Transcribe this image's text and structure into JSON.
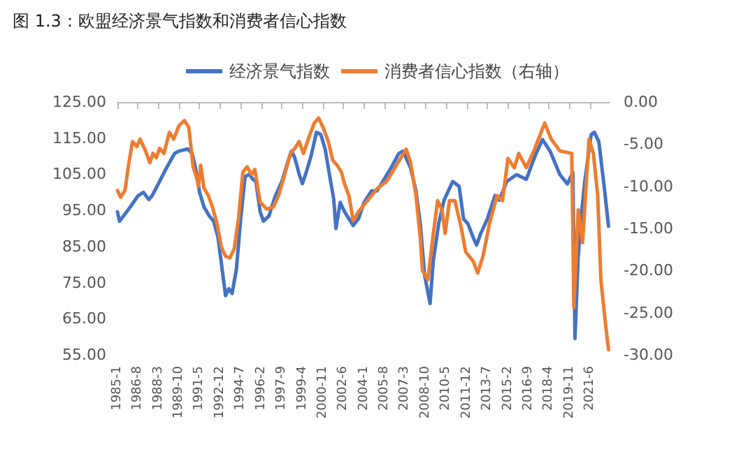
{
  "chart_data": {
    "type": "line",
    "title": "图 1.3：欧盟经济景气指数和消费者信心指数",
    "legend": "top",
    "grid": false,
    "marker": "none",
    "line_style": "solid",
    "xlim": [
      "1985-01",
      "2022-12"
    ],
    "xticks": [
      {
        "value": "1985-01",
        "label": "1985-1"
      },
      {
        "value": "1986-08",
        "label": "1986-8"
      },
      {
        "value": "1988-03",
        "label": "1988-3"
      },
      {
        "value": "1989-10",
        "label": "1989-10"
      },
      {
        "value": "1991-05",
        "label": "1991-5"
      },
      {
        "value": "1992-12",
        "label": "1992-12"
      },
      {
        "value": "1994-07",
        "label": "1994-7"
      },
      {
        "value": "1996-02",
        "label": "1996-2"
      },
      {
        "value": "1997-09",
        "label": "1997-9"
      },
      {
        "value": "1999-04",
        "label": "1999-4"
      },
      {
        "value": "2000-11",
        "label": "2000-11"
      },
      {
        "value": "2002-06",
        "label": "2002-6"
      },
      {
        "value": "2004-01",
        "label": "2004-1"
      },
      {
        "value": "2005-08",
        "label": "2005-8"
      },
      {
        "value": "2007-03",
        "label": "2007-3"
      },
      {
        "value": "2008-10",
        "label": "2008-10"
      },
      {
        "value": "2010-05",
        "label": "2010-5"
      },
      {
        "value": "2011-12",
        "label": "2011-12"
      },
      {
        "value": "2013-07",
        "label": "2013-7"
      },
      {
        "value": "2015-02",
        "label": "2015-2"
      },
      {
        "value": "2016-09",
        "label": "2016-9"
      },
      {
        "value": "2018-04",
        "label": "2018-4"
      },
      {
        "value": "2019-11",
        "label": "2019-11"
      },
      {
        "value": "2021-06",
        "label": "2021-6"
      }
    ],
    "ylim": [
      55,
      125
    ],
    "yticks": [
      {
        "value": 55,
        "label": "55.00"
      },
      {
        "value": 65,
        "label": "65.00"
      },
      {
        "value": 75,
        "label": "75.00"
      },
      {
        "value": 85,
        "label": "85.00"
      },
      {
        "value": 95,
        "label": "95.00"
      },
      {
        "value": 105,
        "label": "105.00"
      },
      {
        "value": 115,
        "label": "115.00"
      },
      {
        "value": 125,
        "label": "125.00"
      }
    ],
    "y2lim": [
      -30,
      0
    ],
    "y2ticks": [
      {
        "value": -30,
        "label": "-30.00"
      },
      {
        "value": -25,
        "label": "-25.00"
      },
      {
        "value": -20,
        "label": "-20.00"
      },
      {
        "value": -15,
        "label": "-15.00"
      },
      {
        "value": -10,
        "label": "-10.00"
      },
      {
        "value": -5,
        "label": "-5.00"
      },
      {
        "value": 0,
        "label": "0.00"
      }
    ],
    "series": [
      {
        "name": "经济景气指数",
        "color": "#4472c4",
        "x": [
          "1985-01",
          "1985-03",
          "1986-01",
          "1986-08",
          "1987-01",
          "1987-06",
          "1987-09",
          "1988-03",
          "1988-09",
          "1989-06",
          "1989-10",
          "1990-06",
          "1990-10",
          "1991-01",
          "1991-05",
          "1991-09",
          "1992-02",
          "1992-06",
          "1992-10",
          "1993-03",
          "1993-05",
          "1993-08",
          "1993-11",
          "1994-03",
          "1994-07",
          "1994-11",
          "1995-03",
          "1995-06",
          "1995-09",
          "1996-01",
          "1996-04",
          "1996-09",
          "1997-03",
          "1997-09",
          "1998-03",
          "1998-06",
          "1998-09",
          "1999-01",
          "1999-04",
          "1999-07",
          "1999-12",
          "2000-05",
          "2000-09",
          "2001-01",
          "2001-05",
          "2001-09",
          "2001-11",
          "2002-03",
          "2002-07",
          "2002-11",
          "2003-03",
          "2003-08",
          "2004-01",
          "2004-08",
          "2005-01",
          "2006-02",
          "2006-09",
          "2007-01",
          "2007-08",
          "2008-01",
          "2008-05",
          "2008-09",
          "2009-02",
          "2009-05",
          "2009-10",
          "2010-03",
          "2010-11",
          "2011-05",
          "2011-09",
          "2012-01",
          "2012-06",
          "2012-09",
          "2013-01",
          "2013-07",
          "2014-02",
          "2014-06",
          "2015-01",
          "2015-10",
          "2016-07",
          "2017-04",
          "2017-10",
          "2018-05",
          "2019-02",
          "2019-09",
          "2020-02",
          "2020-04",
          "2020-07",
          "2020-10",
          "2021-01",
          "2021-07",
          "2021-10",
          "2022-02",
          "2022-07",
          "2022-11"
        ],
        "values": [
          94.6,
          92,
          96,
          99,
          100,
          98,
          99,
          102.4,
          106,
          110.8,
          111.4,
          112,
          110.8,
          107,
          100,
          96,
          93.4,
          92,
          87.5,
          76,
          71.4,
          73.3,
          72,
          78.6,
          92.7,
          104.3,
          105,
          103.7,
          103,
          94.6,
          92,
          93.4,
          99,
          103,
          108.8,
          111.4,
          109.5,
          105,
          102.4,
          105,
          110,
          116.6,
          116,
          112,
          105,
          98,
          90,
          97.2,
          94.6,
          92.7,
          90.8,
          92.7,
          97.2,
          100.4,
          100.4,
          106.8,
          110.7,
          111.4,
          106.8,
          100.4,
          91.3,
          77,
          69.2,
          81,
          91.3,
          97.8,
          103,
          101.6,
          92.6,
          91.3,
          87.4,
          85.4,
          88.7,
          92.6,
          99.1,
          97.8,
          103,
          104.9,
          103.6,
          110.7,
          114.6,
          111.4,
          104.9,
          102.3,
          105.5,
          59.5,
          82.2,
          93.9,
          103,
          116,
          116.6,
          114,
          101.6,
          90.6
        ]
      },
      {
        "name": "消费者信心指数（右轴）",
        "color": "#ed7d31",
        "axis": "y2",
        "x": [
          "1985-01",
          "1985-04",
          "1985-08",
          "1985-11",
          "1986-03",
          "1986-07",
          "1986-10",
          "1987-03",
          "1987-07",
          "1987-10",
          "1988-01",
          "1988-04",
          "1988-08",
          "1989-01",
          "1989-05",
          "1989-10",
          "1990-03",
          "1990-07",
          "1990-11",
          "1991-02",
          "1991-04",
          "1991-06",
          "1991-09",
          "1992-01",
          "1992-05",
          "1992-09",
          "1993-01",
          "1993-05",
          "1993-09",
          "1994-01",
          "1994-05",
          "1994-09",
          "1995-01",
          "1995-05",
          "1995-08",
          "1996-01",
          "1996-07",
          "1997-01",
          "1997-06",
          "1997-11",
          "1998-05",
          "1998-09",
          "1999-01",
          "1999-05",
          "1999-10",
          "2000-03",
          "2000-07",
          "2000-11",
          "2001-04",
          "2001-08",
          "2001-12",
          "2002-04",
          "2002-07",
          "2002-11",
          "2003-03",
          "2003-08",
          "2004-01",
          "2004-08",
          "2005-01",
          "2005-10",
          "2006-07",
          "2007-04",
          "2007-08",
          "2008-01",
          "2008-05",
          "2008-07",
          "2008-12",
          "2009-04",
          "2009-09",
          "2010-01",
          "2010-04",
          "2010-08",
          "2011-01",
          "2011-07",
          "2011-11",
          "2012-06",
          "2012-10",
          "2013-03",
          "2013-09",
          "2014-04",
          "2014-09",
          "2015-02",
          "2015-08",
          "2015-12",
          "2016-07",
          "2017-02",
          "2017-12",
          "2018-06",
          "2019-02",
          "2020-01",
          "2020-03",
          "2020-07",
          "2020-11",
          "2021-05",
          "2021-09",
          "2022-01",
          "2022-04",
          "2022-08",
          "2022-11"
        ],
        "values": [
          -10.5,
          -11.3,
          -10.5,
          -7.7,
          -4.7,
          -5.3,
          -4.4,
          -5.8,
          -7.2,
          -6.1,
          -6.6,
          -5.5,
          -6.1,
          -3.6,
          -4.4,
          -2.8,
          -2.2,
          -3,
          -7.7,
          -8.9,
          -10,
          -7.5,
          -10.2,
          -11.1,
          -12.5,
          -14.4,
          -17.2,
          -18.3,
          -18.5,
          -17.4,
          -13.8,
          -8.3,
          -7.7,
          -8.6,
          -8,
          -11.9,
          -12.7,
          -12.5,
          -11.1,
          -8.9,
          -6.1,
          -5.5,
          -4.7,
          -6.1,
          -4.2,
          -2.5,
          -1.9,
          -3,
          -4.7,
          -6.9,
          -7.5,
          -8.3,
          -9.7,
          -11.1,
          -14.1,
          -13,
          -12.2,
          -11.1,
          -10.3,
          -9.4,
          -7.5,
          -5.6,
          -7.2,
          -11.1,
          -16.1,
          -20,
          -21.1,
          -16.7,
          -11.7,
          -12.8,
          -15.6,
          -11.7,
          -11.7,
          -15,
          -17.8,
          -18.9,
          -20.3,
          -18.3,
          -14.4,
          -11.1,
          -11.7,
          -6.7,
          -7.8,
          -6.1,
          -7.8,
          -5.8,
          -2.5,
          -4.4,
          -5.8,
          -6.1,
          -24.4,
          -12.8,
          -16.7,
          -4.4,
          -6.1,
          -11.1,
          -21.1,
          -26.1,
          -29.4
        ]
      }
    ]
  }
}
